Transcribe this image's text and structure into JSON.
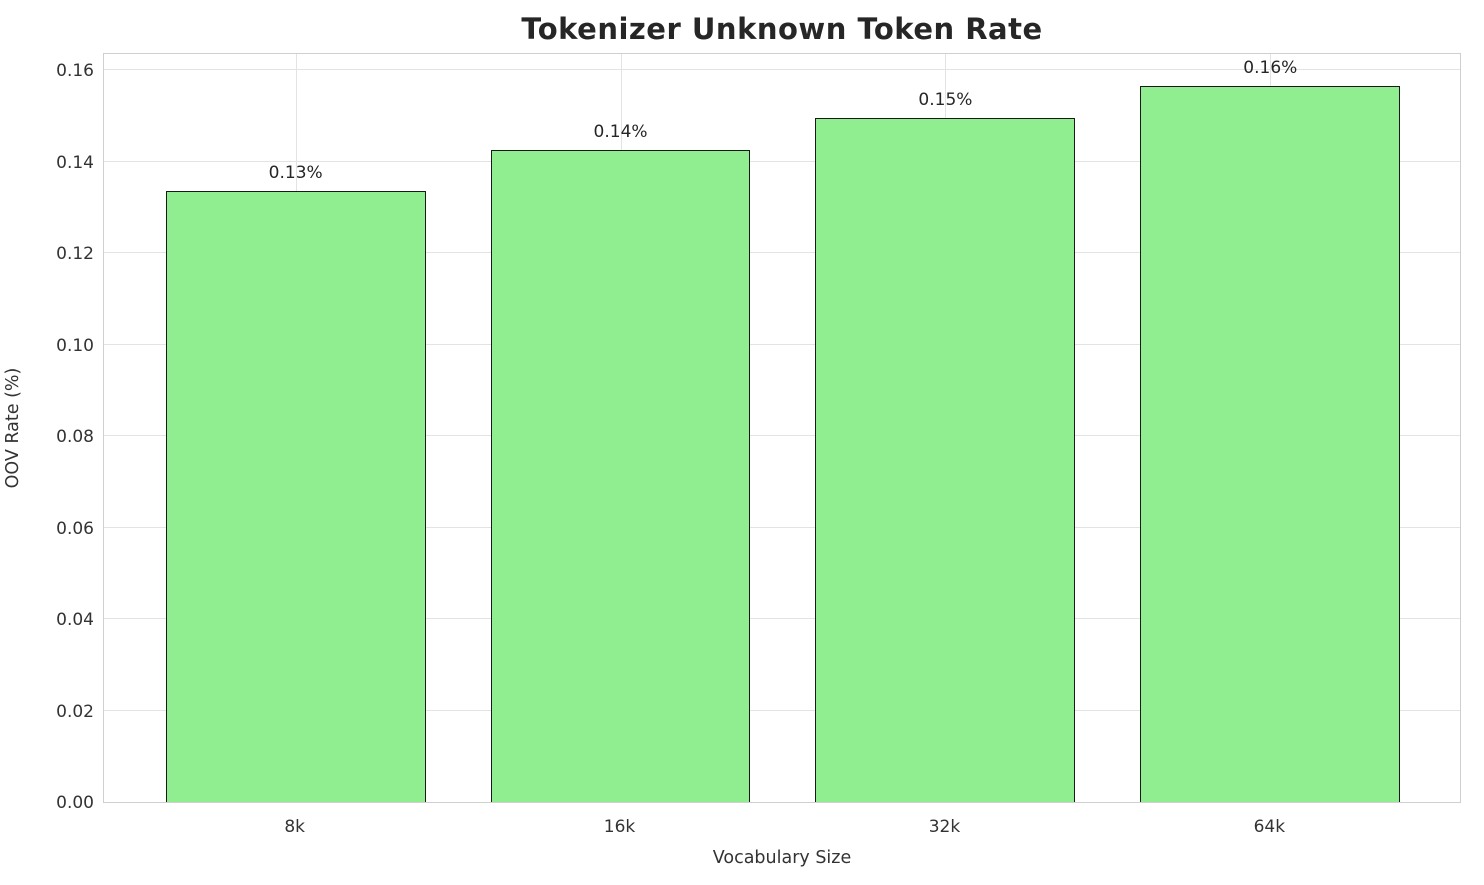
{
  "chart_data": {
    "type": "bar",
    "title": "Tokenizer Unknown Token Rate",
    "xlabel": "Vocabulary Size",
    "ylabel": "OOV Rate (%)",
    "categories": [
      "8k",
      "16k",
      "32k",
      "64k"
    ],
    "values": [
      0.1335,
      0.1425,
      0.1495,
      0.1565
    ],
    "bar_labels": [
      "0.13%",
      "0.14%",
      "0.15%",
      "0.16%"
    ],
    "ylim": [
      0,
      0.164
    ],
    "yticks": [
      0.0,
      0.02,
      0.04,
      0.06,
      0.08,
      0.1,
      0.12,
      0.14,
      0.16
    ],
    "ytick_labels": [
      "0.00",
      "0.02",
      "0.04",
      "0.06",
      "0.08",
      "0.10",
      "0.12",
      "0.14",
      "0.16"
    ],
    "bar_color": "#90EE90",
    "bar_edge_color": "#1a1a1a",
    "grid": true,
    "legend": "none"
  }
}
